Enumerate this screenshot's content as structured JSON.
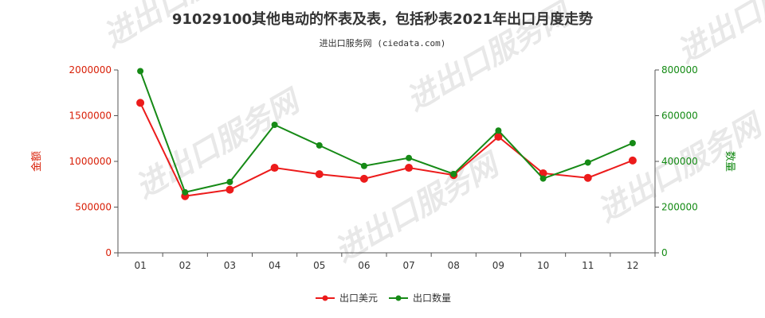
{
  "colors": {
    "left_axis": "#d81e06",
    "right_axis": "#138a13",
    "export_usd": "#ec1b1b",
    "export_qty": "#168a16",
    "axis_line": "#555555",
    "watermark": "#e8e8e8"
  },
  "watermark_text": "进出口服务网",
  "chart_data": {
    "type": "line",
    "title": "91029100其他电动的怀表及表，包括秒表2021年出口月度走势",
    "subtitle": "进出口服务网 (ciedata.com)",
    "categories": [
      "01",
      "02",
      "03",
      "04",
      "05",
      "06",
      "07",
      "08",
      "09",
      "10",
      "11",
      "12"
    ],
    "y_left": {
      "label": "金额",
      "ylim": [
        0,
        2000000
      ],
      "ticks": [
        0,
        500000,
        1000000,
        1500000,
        2000000
      ],
      "tick_labels": [
        "0",
        "500000",
        "1000000",
        "1500000",
        "2000000"
      ]
    },
    "y_right": {
      "label": "数量",
      "ylim": [
        0,
        800000
      ],
      "ticks": [
        0,
        200000,
        400000,
        600000,
        800000
      ],
      "tick_labels": [
        "0",
        "200000",
        "400000",
        "600000",
        "800000"
      ]
    },
    "series": [
      {
        "name": "出口美元",
        "axis": "left",
        "color": "#ec1b1b",
        "values": [
          1640000,
          620000,
          690000,
          930000,
          860000,
          810000,
          930000,
          850000,
          1270000,
          870000,
          820000,
          1010000
        ]
      },
      {
        "name": "出口数量",
        "axis": "right",
        "color": "#168a16",
        "values": [
          795000,
          265000,
          310000,
          560000,
          470000,
          380000,
          415000,
          345000,
          535000,
          325000,
          395000,
          480000
        ]
      }
    ],
    "grid": false,
    "legend_position": "bottom-center"
  }
}
